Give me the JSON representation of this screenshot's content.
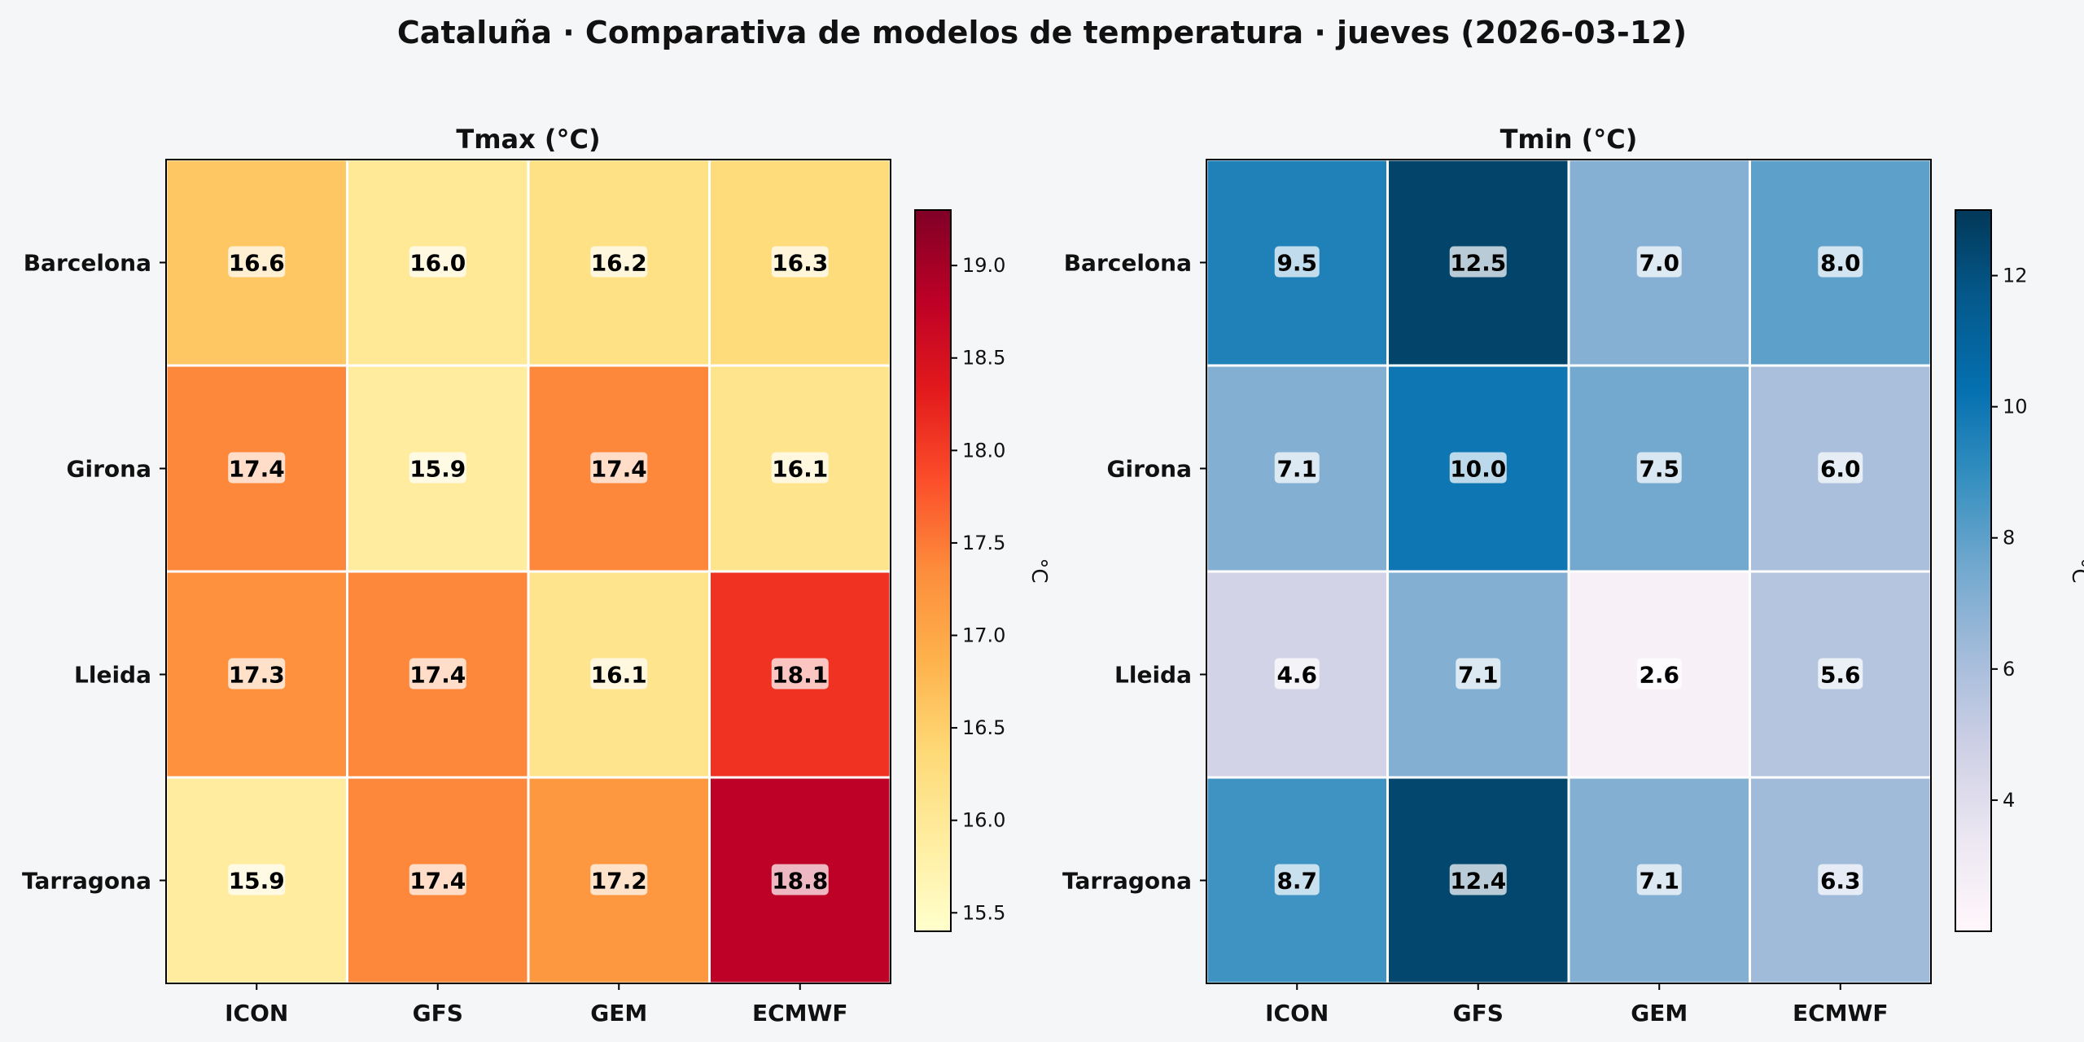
{
  "figure": {
    "title": "Cataluña · Comparativa de modelos de temperatura · jueves (2026-03-12)"
  },
  "chart_data": [
    {
      "type": "heatmap",
      "title": "Tmax (°C)",
      "rows": [
        "Barcelona",
        "Girona",
        "Lleida",
        "Tarragona"
      ],
      "columns": [
        "ICON",
        "GFS",
        "GEM",
        "ECMWF"
      ],
      "values": [
        [
          16.6,
          16.0,
          16.2,
          16.3
        ],
        [
          17.4,
          15.9,
          17.4,
          16.1
        ],
        [
          17.3,
          17.4,
          16.1,
          18.1
        ],
        [
          15.9,
          17.4,
          17.2,
          18.8
        ]
      ],
      "colormap": "YlOrRd",
      "colorbar": {
        "label": "°C",
        "range": [
          15.4,
          19.3
        ],
        "ticks": [
          15.5,
          16.0,
          16.5,
          17.0,
          17.5,
          18.0,
          18.5,
          19.0
        ],
        "tick_labels": [
          "15.5",
          "16.0",
          "16.5",
          "17.0",
          "17.5",
          "18.0",
          "18.5",
          "19.0"
        ]
      }
    },
    {
      "type": "heatmap",
      "title": "Tmin (°C)",
      "rows": [
        "Barcelona",
        "Girona",
        "Lleida",
        "Tarragona"
      ],
      "columns": [
        "ICON",
        "GFS",
        "GEM",
        "ECMWF"
      ],
      "values": [
        [
          9.5,
          12.5,
          7.0,
          8.0
        ],
        [
          7.1,
          10.0,
          7.5,
          6.0
        ],
        [
          4.6,
          7.1,
          2.6,
          5.6
        ],
        [
          8.7,
          12.4,
          7.1,
          6.3
        ]
      ],
      "colormap": "PuBu",
      "colorbar": {
        "label": "°C",
        "range": [
          2.0,
          13.0
        ],
        "ticks": [
          4,
          6,
          8,
          10,
          12
        ],
        "tick_labels": [
          "4",
          "6",
          "8",
          "10",
          "12"
        ]
      }
    }
  ]
}
